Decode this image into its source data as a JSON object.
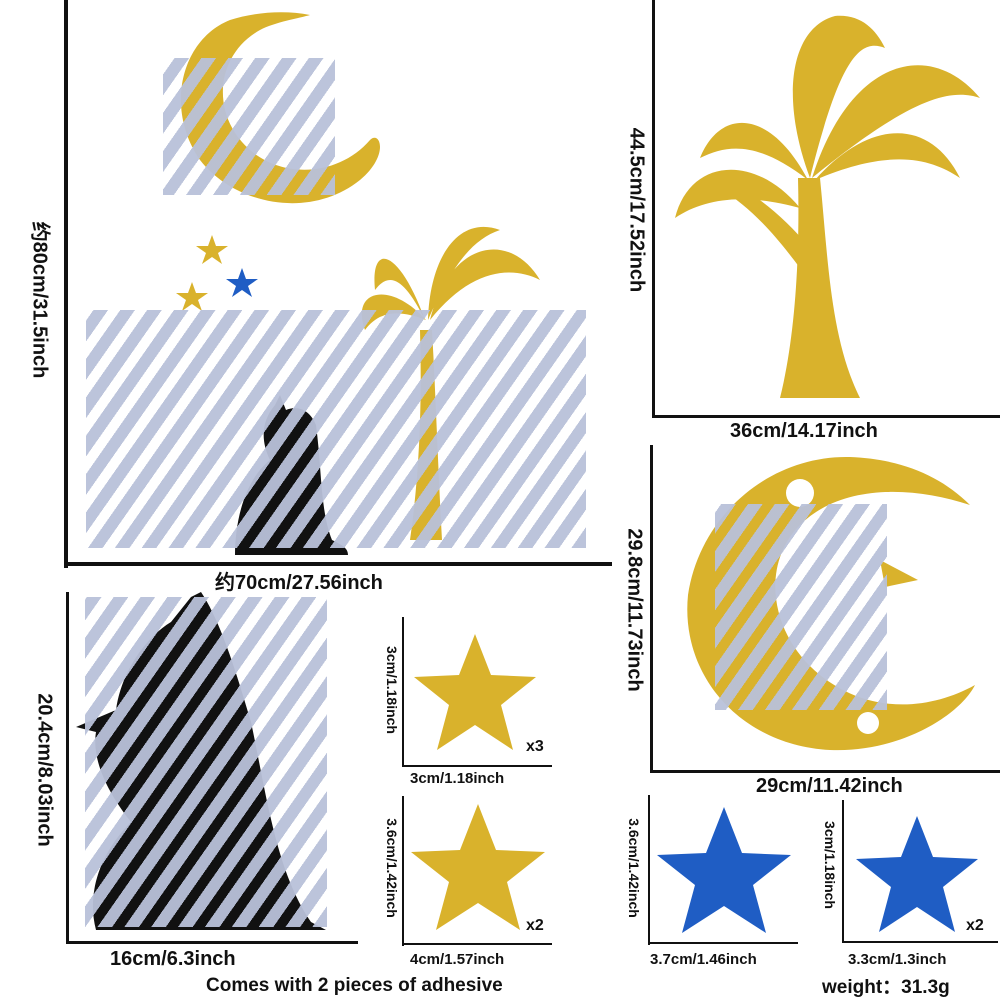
{
  "main_set": {
    "height_label": "约80cm/31.5inch",
    "width_label": "约70cm/27.56inch"
  },
  "palm": {
    "height_label": "44.5cm/17.52inch",
    "width_label": "36cm/14.17inch"
  },
  "moon": {
    "height_label": "29.8cm/11.73inch",
    "width_label": "29cm/11.42inch"
  },
  "cat": {
    "height_label": "20.4cm/8.03inch",
    "width_label": "16cm/6.3inch"
  },
  "gold_star_small": {
    "height_label": "3cm/1.18inch",
    "width_label": "3cm/1.18inch",
    "quantity": "x3"
  },
  "gold_star_large": {
    "height_label": "3.6cm/1.42inch",
    "width_label": "4cm/1.57inch",
    "quantity": "x2"
  },
  "blue_star_large": {
    "height_label": "3.6cm/1.42inch",
    "width_label": "3.7cm/1.46inch"
  },
  "blue_star_small": {
    "height_label": "3cm/1.18inch",
    "width_label": "3.3cm/1.3inch",
    "quantity": "x2"
  },
  "footer": {
    "adhesive_note": "Comes with 2 pieces of adhesive",
    "weight": "weight：31.3g"
  },
  "colors": {
    "gold": "#d9b22c",
    "blue": "#1f5dc4",
    "hatch": "#b9c1d9"
  }
}
